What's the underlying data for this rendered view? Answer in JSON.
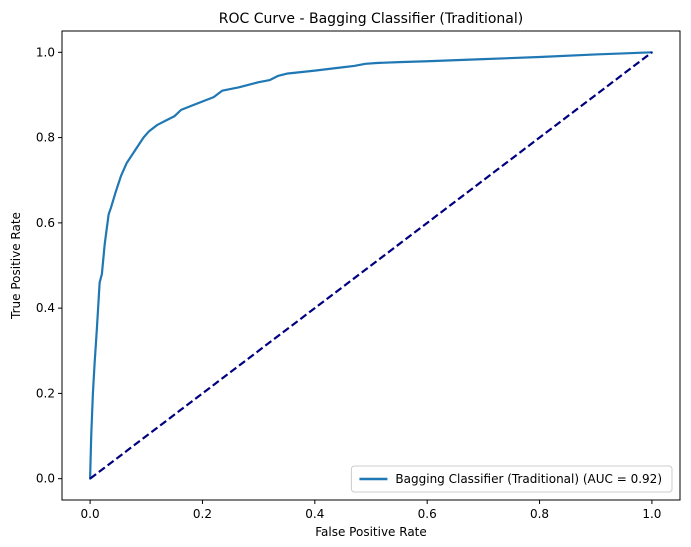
{
  "chart_data": {
    "type": "line",
    "title": "ROC Curve - Bagging Classifier (Traditional)",
    "xlabel": "False Positive Rate",
    "ylabel": "True Positive Rate",
    "xlim": [
      -0.05,
      1.05
    ],
    "ylim": [
      -0.05,
      1.05
    ],
    "xticks": [
      0.0,
      0.2,
      0.4,
      0.6,
      0.8,
      1.0
    ],
    "yticks": [
      0.0,
      0.2,
      0.4,
      0.6,
      0.8,
      1.0
    ],
    "xtick_labels": [
      "0.0",
      "0.2",
      "0.4",
      "0.6",
      "0.8",
      "1.0"
    ],
    "ytick_labels": [
      "0.0",
      "0.2",
      "0.4",
      "0.6",
      "0.8",
      "1.0"
    ],
    "grid": false,
    "legend_position": "lower-right",
    "series": [
      {
        "name": "Bagging Classifier (Traditional) (AUC = 0.92)",
        "color": "#1f77b4",
        "style": "solid",
        "x": [
          0.0,
          0.002,
          0.005,
          0.008,
          0.012,
          0.017,
          0.021,
          0.026,
          0.033,
          0.037,
          0.045,
          0.055,
          0.065,
          0.08,
          0.095,
          0.105,
          0.12,
          0.135,
          0.15,
          0.162,
          0.185,
          0.22,
          0.235,
          0.265,
          0.3,
          0.32,
          0.335,
          0.35,
          0.4,
          0.45,
          0.47,
          0.49,
          0.51,
          0.55,
          0.6,
          0.7,
          0.8,
          0.9,
          1.0
        ],
        "y": [
          0.0,
          0.1,
          0.2,
          0.27,
          0.35,
          0.46,
          0.48,
          0.55,
          0.62,
          0.635,
          0.67,
          0.71,
          0.74,
          0.77,
          0.8,
          0.815,
          0.83,
          0.84,
          0.85,
          0.865,
          0.877,
          0.895,
          0.91,
          0.918,
          0.93,
          0.935,
          0.945,
          0.95,
          0.957,
          0.965,
          0.968,
          0.973,
          0.975,
          0.977,
          0.979,
          0.984,
          0.989,
          0.995,
          1.0
        ]
      },
      {
        "name": "",
        "color": "#000080",
        "style": "dashed",
        "x": [
          0.0,
          1.0
        ],
        "y": [
          0.0,
          1.0
        ]
      }
    ]
  }
}
